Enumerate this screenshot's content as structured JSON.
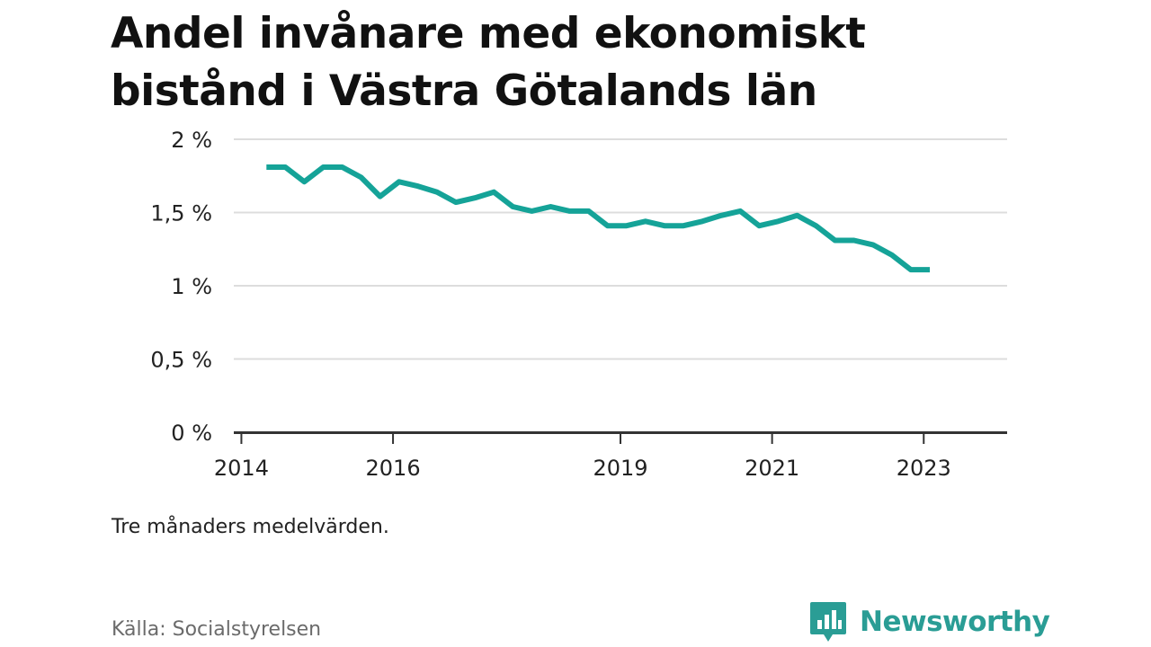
{
  "title": "Andel invånare med ekonomiskt bistånd i Västra Götalands län",
  "note": "Tre månaders medelvärden.",
  "source": "Källa: Socialstyrelsen",
  "brand": {
    "name": "Newsworthy",
    "icon": "newsworthy-logo-icon",
    "color": "#2a9d95"
  },
  "chart_data": {
    "type": "line",
    "title": "Andel invånare med ekonomiskt bistånd i Västra Götalands län",
    "xlabel": "",
    "ylabel": "",
    "x_ticks": [
      "2014",
      "2016",
      "2019",
      "2021",
      "2023"
    ],
    "x_tick_values": [
      2014.0,
      2016.0,
      2019.0,
      2021.0,
      2023.0
    ],
    "y_ticks": [
      "0 %",
      "0,5 %",
      "1 %",
      "1,5 %",
      "2 %"
    ],
    "y_tick_values": [
      0,
      0.5,
      1,
      1.5,
      2
    ],
    "xlim": [
      2013.9,
      2024.1
    ],
    "ylim": [
      0,
      2
    ],
    "grid": true,
    "line_color": "#15a398",
    "series": [
      {
        "x": [
          2014.33,
          2014.58,
          2014.83,
          2015.08,
          2015.33,
          2015.58,
          2015.83,
          2016.08,
          2016.33,
          2016.58,
          2016.83,
          2017.08,
          2017.33,
          2017.58,
          2017.83,
          2018.08,
          2018.33,
          2018.58,
          2018.83,
          2019.08,
          2019.33,
          2019.58,
          2019.83,
          2020.08,
          2020.33,
          2020.58,
          2020.83,
          2021.08,
          2021.33,
          2021.58,
          2021.83,
          2022.08,
          2022.33,
          2022.58,
          2022.83,
          2023.08
        ],
        "values": [
          1.81,
          1.81,
          1.71,
          1.81,
          1.81,
          1.74,
          1.61,
          1.71,
          1.68,
          1.64,
          1.57,
          1.6,
          1.64,
          1.54,
          1.51,
          1.54,
          1.51,
          1.51,
          1.41,
          1.41,
          1.44,
          1.41,
          1.41,
          1.44,
          1.48,
          1.51,
          1.41,
          1.44,
          1.48,
          1.41,
          1.31,
          1.31,
          1.28,
          1.21,
          1.11,
          1.11
        ]
      }
    ]
  }
}
